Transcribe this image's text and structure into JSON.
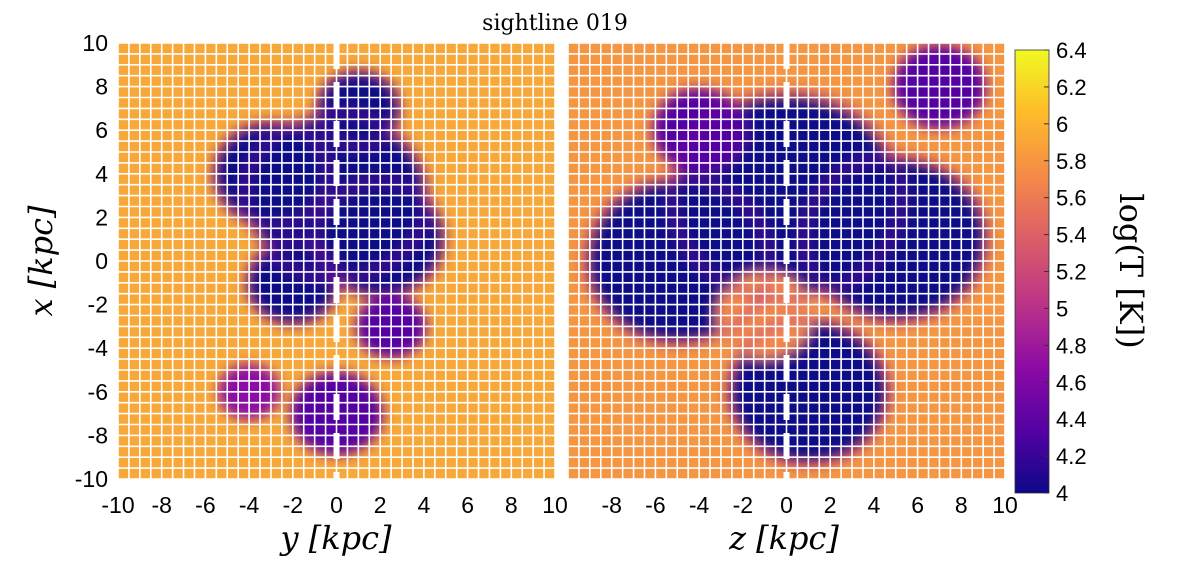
{
  "chart_data": {
    "type": "heatmap",
    "title": "sightline 019",
    "colormap": "plasma",
    "colors": [
      "#0d0887",
      "#5402a3",
      "#8b0aa5",
      "#b93289",
      "#db5c68",
      "#f48849",
      "#febc2a",
      "#f0f921"
    ],
    "panels": [
      {
        "xlabel": "y [kpc]",
        "ylabel": "x [kpc]",
        "xlim": [
          -10,
          10
        ],
        "ylim": [
          -10,
          10
        ],
        "xticks": [
          "-10",
          "-8",
          "-6",
          "-4",
          "-2",
          "0",
          "2",
          "4",
          "6",
          "8",
          "10"
        ],
        "yticks": [
          "10",
          "8",
          "6",
          "4",
          "2",
          "0",
          "-2",
          "-4",
          "-6",
          "-8",
          "-10"
        ],
        "sightline_position": 0,
        "grid": true,
        "cold_region_description": "dense cold (logT~4) cloud centered near y=-1..3, x=-1..6",
        "blobs": [
          {
            "cx": 0,
            "cy": 3,
            "r": 4,
            "logT": 4.0
          },
          {
            "cx": -3,
            "cy": 4,
            "r": 2.5,
            "logT": 4.05
          },
          {
            "cx": 2,
            "cy": 1,
            "r": 2.8,
            "logT": 4.0
          },
          {
            "cx": 1,
            "cy": 7,
            "r": 1.8,
            "logT": 4.1
          },
          {
            "cx": -2,
            "cy": -1,
            "r": 2,
            "logT": 4.1
          },
          {
            "cx": 2.5,
            "cy": -3,
            "r": 1.5,
            "logT": 4.2
          },
          {
            "cx": 0,
            "cy": -7,
            "r": 2,
            "logT": 4.2
          },
          {
            "cx": -4,
            "cy": -6,
            "r": 1.4,
            "logT": 4.8
          }
        ]
      },
      {
        "xlabel": "z [kpc]",
        "ylabel": "",
        "xlim": [
          -10,
          10
        ],
        "ylim": [
          -10,
          10
        ],
        "xticks": [
          "-8",
          "-6",
          "-4",
          "-2",
          "0",
          "2",
          "4",
          "6",
          "8",
          "10"
        ],
        "sightline_position": 0,
        "grid": true,
        "cold_region_description": "large cold cloud covering most of the panel, warm filament near x=-3",
        "blobs": [
          {
            "cx": 0,
            "cy": 3,
            "r": 5,
            "logT": 4.0
          },
          {
            "cx": -5,
            "cy": 0,
            "r": 4,
            "logT": 4.05
          },
          {
            "cx": 5,
            "cy": 1,
            "r": 4,
            "logT": 4.05
          },
          {
            "cx": 1,
            "cy": -6,
            "r": 3.5,
            "logT": 4.05
          },
          {
            "cx": -4,
            "cy": 6,
            "r": 2,
            "logT": 4.2
          },
          {
            "cx": 7,
            "cy": 8,
            "r": 2,
            "logT": 4.3
          },
          {
            "cx": -1,
            "cy": -2.5,
            "r": 2.2,
            "logT": 5.7
          }
        ]
      }
    ],
    "colorbar": {
      "label": "log(T [K])",
      "range": [
        4,
        6.4
      ],
      "ticks": [
        "6.4",
        "6.2",
        "6",
        "5.8",
        "5.6",
        "5.4",
        "5.2",
        "5",
        "4.8",
        "4.6",
        "4.4",
        "4.2",
        "4"
      ]
    }
  }
}
